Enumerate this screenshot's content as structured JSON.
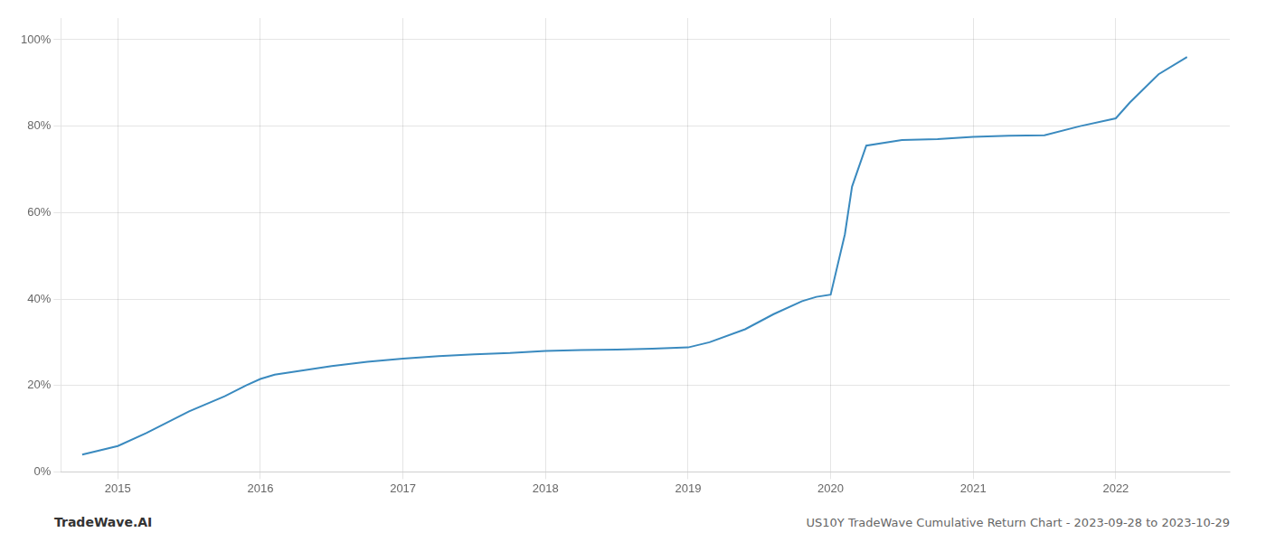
{
  "chart_data": {
    "type": "line",
    "title": "US10Y TradeWave Cumulative Return Chart - 2023-09-28 to 2023-10-29",
    "annotations": [
      "TradeWave.AI"
    ],
    "x": [
      2014.75,
      2015.0,
      2015.2,
      2015.5,
      2015.75,
      2015.9,
      2016.0,
      2016.1,
      2016.3,
      2016.5,
      2016.75,
      2017.0,
      2017.25,
      2017.5,
      2017.75,
      2018.0,
      2018.25,
      2018.5,
      2018.75,
      2019.0,
      2019.15,
      2019.4,
      2019.6,
      2019.8,
      2019.9,
      2020.0,
      2020.1,
      2020.15,
      2020.25,
      2020.5,
      2020.75,
      2021.0,
      2021.25,
      2021.5,
      2021.75,
      2022.0,
      2022.1,
      2022.3,
      2022.5
    ],
    "values": [
      0.04,
      0.06,
      0.09,
      0.14,
      0.175,
      0.2,
      0.215,
      0.225,
      0.235,
      0.245,
      0.255,
      0.262,
      0.268,
      0.272,
      0.275,
      0.28,
      0.282,
      0.283,
      0.285,
      0.288,
      0.3,
      0.33,
      0.365,
      0.395,
      0.405,
      0.41,
      0.55,
      0.66,
      0.755,
      0.768,
      0.77,
      0.775,
      0.778,
      0.779,
      0.8,
      0.818,
      0.855,
      0.92,
      0.96
    ],
    "color": "#3a8abf",
    "xlim": [
      2014.6,
      2022.8
    ],
    "xticks": [
      2015,
      2016,
      2017,
      2018,
      2019,
      2020,
      2021,
      2022
    ],
    "ylim": [
      0,
      1.05
    ],
    "yticks": [
      {
        "value": 0,
        "label": "0%"
      },
      {
        "value": 0.2,
        "label": "20%"
      },
      {
        "value": 0.4,
        "label": "40%"
      },
      {
        "value": 0.6,
        "label": "60%"
      },
      {
        "value": 0.8,
        "label": "80%"
      },
      {
        "value": 1.0,
        "label": "100%"
      }
    ],
    "grid": true
  }
}
